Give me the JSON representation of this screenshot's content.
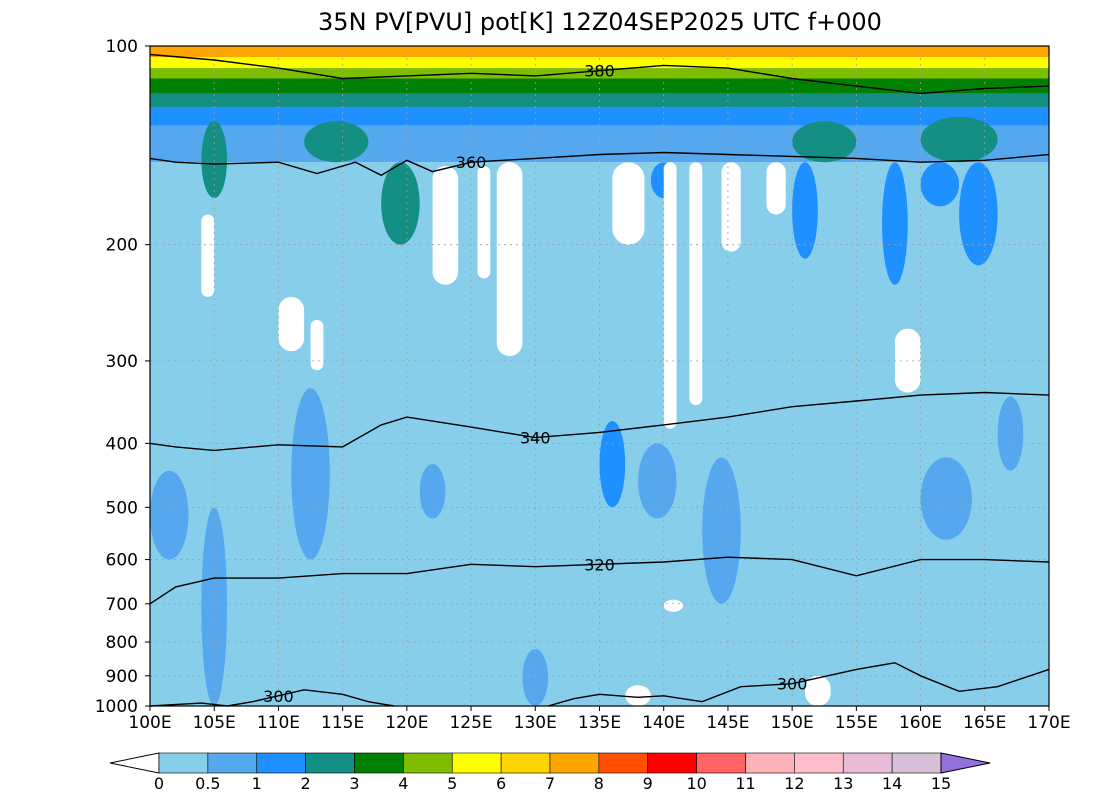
{
  "chart_data": {
    "type": "contour",
    "title": "35N PV[PVU] pot[K] 12Z04SEP2025 UTC f+000",
    "x_ticks": [
      "100E",
      "105E",
      "110E",
      "115E",
      "120E",
      "125E",
      "130E",
      "135E",
      "140E",
      "145E",
      "150E",
      "155E",
      "160E",
      "165E",
      "170E"
    ],
    "x_values": [
      100,
      105,
      110,
      115,
      120,
      125,
      130,
      135,
      140,
      145,
      150,
      155,
      160,
      165,
      170
    ],
    "y_ticks": [
      "100",
      "200",
      "300",
      "400",
      "500",
      "600",
      "700",
      "800",
      "900",
      "1000"
    ],
    "y_values": [
      100,
      200,
      300,
      400,
      500,
      600,
      700,
      800,
      900,
      1000
    ],
    "x_range": [
      100,
      170
    ],
    "y_range": [
      1000,
      100
    ],
    "y_scale": "log",
    "grid": true,
    "colorbar": {
      "label_values": [
        "0",
        "0.5",
        "1",
        "2",
        "3",
        "4",
        "5",
        "6",
        "7",
        "8",
        "9",
        "10",
        "11",
        "12",
        "13",
        "14",
        "15"
      ],
      "colors": [
        "#87ceeb",
        "#56a8ee",
        "#1e90ff",
        "#138f83",
        "#008000",
        "#7fbd00",
        "#ffff00",
        "#ffd400",
        "#ffa500",
        "#ff5000",
        "#ff0000",
        "#ff6464",
        "#ffb3b9",
        "#ffc0cb",
        "#e8bcd6",
        "#d8bfd8",
        "#b088e0"
      ],
      "under_color": "#ffffff",
      "over_color": "#9370db"
    },
    "fill_bands": [
      {
        "p": [
          100,
          104
        ],
        "level": 8
      },
      {
        "p": [
          104,
          108
        ],
        "level": 6
      },
      {
        "p": [
          108,
          112
        ],
        "level": 5
      },
      {
        "p": [
          112,
          118
        ],
        "level": 4
      },
      {
        "p": [
          118,
          124
        ],
        "level": 3
      },
      {
        "p": [
          124,
          132
        ],
        "level": 2
      },
      {
        "p": [
          132,
          150
        ],
        "level": 1
      },
      {
        "p": [
          150,
          1000
        ],
        "level": 0
      }
    ],
    "contour_lines": [
      {
        "label": "380",
        "x": [
          100,
          105,
          110,
          115,
          120,
          125,
          130,
          135,
          140,
          145,
          150,
          155,
          160,
          165,
          170
        ],
        "p": [
          103,
          105,
          108,
          112,
          111,
          110,
          111,
          109,
          107,
          108,
          112,
          115,
          118,
          116,
          115
        ]
      },
      {
        "label": "360",
        "x": [
          100,
          102,
          105,
          110,
          113,
          116,
          118,
          120,
          122,
          125,
          130,
          135,
          140,
          145,
          150,
          155,
          160,
          165,
          170
        ],
        "p": [
          148,
          150,
          151,
          150,
          156,
          150,
          157,
          149,
          155,
          150,
          148,
          146,
          145,
          146,
          147,
          148,
          150,
          149,
          146
        ]
      },
      {
        "label": "340",
        "x": [
          100,
          102,
          105,
          110,
          115,
          118,
          120,
          125,
          130,
          135,
          140,
          145,
          150,
          155,
          160,
          165,
          170
        ],
        "p": [
          400,
          405,
          410,
          402,
          405,
          375,
          365,
          378,
          392,
          385,
          375,
          365,
          352,
          345,
          338,
          335,
          338
        ]
      },
      {
        "label": "320",
        "x": [
          100,
          102,
          105,
          110,
          115,
          120,
          125,
          130,
          135,
          140,
          145,
          150,
          155,
          160,
          165,
          170
        ],
        "p": [
          700,
          660,
          640,
          640,
          630,
          630,
          610,
          615,
          610,
          605,
          595,
          600,
          635,
          600,
          600,
          605
        ]
      },
      {
        "label": "300",
        "x": [
          100,
          104,
          106,
          108,
          110,
          112,
          115,
          117,
          119
        ],
        "p": [
          1000,
          990,
          1000,
          985,
          965,
          945,
          960,
          985,
          1000
        ]
      },
      {
        "label": "300",
        "x": [
          131,
          133,
          135,
          138,
          140,
          143,
          146,
          150,
          155,
          158,
          160,
          163,
          166,
          170
        ],
        "p": [
          1000,
          975,
          960,
          970,
          965,
          985,
          935,
          925,
          880,
          860,
          900,
          950,
          935,
          880
        ]
      }
    ],
    "white_patches": [
      {
        "x": [
          122,
          124
        ],
        "p": [
          152,
          230
        ]
      },
      {
        "x": [
          125.5,
          126.5
        ],
        "p": [
          152,
          225
        ]
      },
      {
        "x": [
          127,
          129
        ],
        "p": [
          150,
          295
        ]
      },
      {
        "x": [
          136,
          138.5
        ],
        "p": [
          150,
          200
        ]
      },
      {
        "x": [
          140,
          141
        ],
        "p": [
          150,
          380
        ]
      },
      {
        "x": [
          142,
          143
        ],
        "p": [
          150,
          350
        ]
      },
      {
        "x": [
          144.5,
          146
        ],
        "p": [
          150,
          205
        ]
      },
      {
        "x": [
          148,
          149.5
        ],
        "p": [
          150,
          180
        ]
      },
      {
        "x": [
          104,
          105
        ],
        "p": [
          180,
          240
        ]
      },
      {
        "x": [
          110,
          112
        ],
        "p": [
          240,
          290
        ]
      },
      {
        "x": [
          112.5,
          113.5
        ],
        "p": [
          260,
          310
        ]
      },
      {
        "x": [
          158,
          160
        ],
        "p": [
          268,
          335
        ]
      },
      {
        "x": [
          140,
          141.5
        ],
        "p": [
          690,
          720
        ]
      },
      {
        "x": [
          151,
          153
        ],
        "p": [
          900,
          1000
        ]
      },
      {
        "x": [
          137,
          139
        ],
        "p": [
          930,
          1000
        ]
      }
    ],
    "shaded_patches": [
      {
        "x": [
          118,
          121
        ],
        "p": [
          150,
          200
        ],
        "level": 3
      },
      {
        "x": [
          104,
          106
        ],
        "p": [
          130,
          170
        ],
        "level": 3
      },
      {
        "x": [
          112,
          117
        ],
        "p": [
          130,
          150
        ],
        "level": 3
      },
      {
        "x": [
          150,
          155
        ],
        "p": [
          130,
          150
        ],
        "level": 3
      },
      {
        "x": [
          160,
          166
        ],
        "p": [
          128,
          150
        ],
        "level": 3
      },
      {
        "x": [
          150,
          152
        ],
        "p": [
          150,
          210
        ],
        "level": 2
      },
      {
        "x": [
          157,
          159
        ],
        "p": [
          150,
          230
        ],
        "level": 2
      },
      {
        "x": [
          163,
          166
        ],
        "p": [
          150,
          215
        ],
        "level": 2
      },
      {
        "x": [
          160,
          163
        ],
        "p": [
          150,
          175
        ],
        "level": 2
      },
      {
        "x": [
          139,
          141
        ],
        "p": [
          150,
          170
        ],
        "level": 2
      },
      {
        "x": [
          144.6,
          145.2
        ],
        "p": [
          490,
          540
        ],
        "level": 3
      },
      {
        "x": [
          135,
          137
        ],
        "p": [
          370,
          500
        ],
        "level": 2
      },
      {
        "x": [
          143,
          146
        ],
        "p": [
          420,
          700
        ],
        "level": 1
      },
      {
        "x": [
          121,
          123
        ],
        "p": [
          430,
          520
        ],
        "level": 1
      },
      {
        "x": [
          111,
          114
        ],
        "p": [
          330,
          600
        ],
        "level": 1
      },
      {
        "x": [
          104,
          106
        ],
        "p": [
          500,
          1000
        ],
        "level": 1
      },
      {
        "x": [
          129,
          131
        ],
        "p": [
          820,
          1000
        ],
        "level": 1
      },
      {
        "x": [
          138,
          141
        ],
        "p": [
          400,
          520
        ],
        "level": 1
      },
      {
        "x": [
          160,
          164
        ],
        "p": [
          420,
          560
        ],
        "level": 1
      },
      {
        "x": [
          166,
          168
        ],
        "p": [
          340,
          440
        ],
        "level": 1
      },
      {
        "x": [
          100,
          103
        ],
        "p": [
          440,
          600
        ],
        "level": 1
      }
    ]
  }
}
